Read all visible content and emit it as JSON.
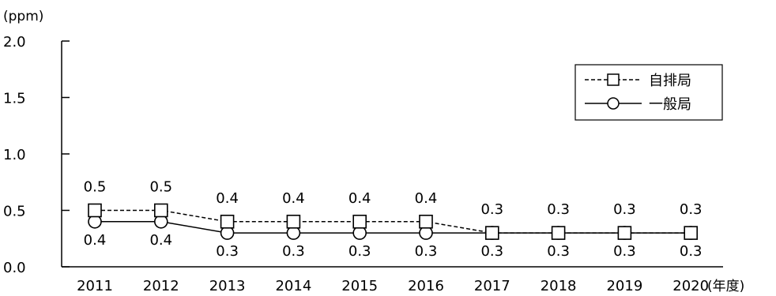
{
  "chart_data": {
    "type": "line",
    "y_unit_label": "(ppm)",
    "x_unit_label": "(年度)",
    "categories": [
      "2011",
      "2012",
      "2013",
      "2014",
      "2015",
      "2016",
      "2017",
      "2018",
      "2019",
      "2020"
    ],
    "ylim": [
      0,
      2.0
    ],
    "yticks": [
      "0.0",
      "0.5",
      "1.0",
      "1.5",
      "2.0"
    ],
    "grid": false,
    "legend_position": "top-right",
    "series": [
      {
        "name": "自排局",
        "values": [
          0.5,
          0.5,
          0.4,
          0.4,
          0.4,
          0.4,
          0.3,
          0.3,
          0.3,
          0.3
        ],
        "labels": [
          "0.5",
          "0.5",
          "0.4",
          "0.4",
          "0.4",
          "0.4",
          "0.3",
          "0.3",
          "0.3",
          "0.3"
        ],
        "marker": "square",
        "line_style": "dashed"
      },
      {
        "name": "一般局",
        "values": [
          0.4,
          0.4,
          0.3,
          0.3,
          0.3,
          0.3,
          0.3,
          0.3,
          0.3,
          0.3
        ],
        "labels": [
          "0.4",
          "0.4",
          "0.3",
          "0.3",
          "0.3",
          "0.3",
          "0.3",
          "0.3",
          "0.3",
          "0.3"
        ],
        "marker": "circle",
        "line_style": "solid"
      }
    ]
  }
}
